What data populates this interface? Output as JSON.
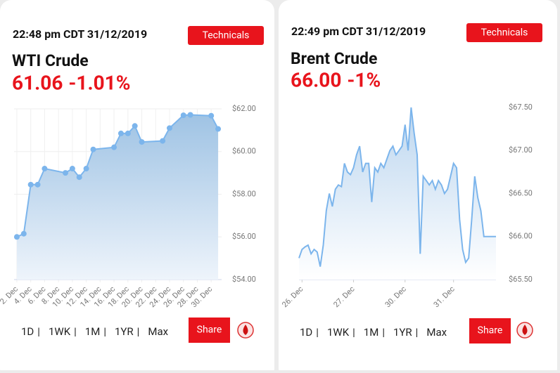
{
  "cards": [
    {
      "timestamp": "22:48 pm CDT 31/12/2019",
      "button": "Technicals",
      "name": "WTI Crude",
      "price": "61.06",
      "change": "-1.01%",
      "periods": [
        "1D",
        "1WK",
        "1M",
        "1YR",
        "Max"
      ],
      "separator": "|",
      "active": 2,
      "share": "Share"
    },
    {
      "timestamp": "22:49 pm CDT 31/12/2019",
      "button": "Technicals",
      "name": "Brent Crude",
      "price": "66.00",
      "change": "-1%",
      "periods": [
        "1D",
        "1WK",
        "1M",
        "1YR",
        "Max"
      ],
      "separator": "|",
      "active": 1,
      "share": "Share"
    }
  ],
  "chart_data": [
    {
      "type": "area",
      "markers": true,
      "grid": true,
      "color": "#7cb5ec",
      "x": [
        2,
        3,
        4,
        5,
        6,
        9,
        10,
        11,
        12,
        13,
        16,
        17,
        18,
        19,
        20,
        23,
        24,
        26,
        27,
        30,
        31
      ],
      "values": [
        56.0,
        56.15,
        58.45,
        58.45,
        59.2,
        59.0,
        59.2,
        58.8,
        59.2,
        60.1,
        60.2,
        60.85,
        60.85,
        61.2,
        60.45,
        60.5,
        61.1,
        61.7,
        61.72,
        61.68,
        61.06
      ],
      "xlim": [
        1.6,
        31.5
      ],
      "xticks": [
        {
          "value": 2,
          "label": "2. Dec"
        },
        {
          "value": 4,
          "label": "4. Dec"
        },
        {
          "value": 6,
          "label": "6. Dec"
        },
        {
          "value": 8,
          "label": "8. Dec"
        },
        {
          "value": 10,
          "label": "10. Dec"
        },
        {
          "value": 12,
          "label": "12. Dec"
        },
        {
          "value": 14,
          "label": "14. Dec"
        },
        {
          "value": 16,
          "label": "16. Dec"
        },
        {
          "value": 18,
          "label": "18. Dec"
        },
        {
          "value": 20,
          "label": "20. Dec"
        },
        {
          "value": 22,
          "label": "22. Dec"
        },
        {
          "value": 24,
          "label": "24. Dec"
        },
        {
          "value": 26,
          "label": "26. Dec"
        },
        {
          "value": 28,
          "label": "28. Dec"
        },
        {
          "value": 30,
          "label": "30. Dec"
        }
      ],
      "ylim": [
        54,
        62
      ],
      "yticks": [
        {
          "value": 54,
          "label": "$54.00"
        },
        {
          "value": 56,
          "label": "$56.00"
        },
        {
          "value": 58,
          "label": "$58.00"
        },
        {
          "value": 60,
          "label": "$60.00"
        },
        {
          "value": 62,
          "label": "$62.00"
        }
      ]
    },
    {
      "type": "area",
      "markers": false,
      "grid": false,
      "color": "#7cb5ec",
      "categories": [
        null,
        "26. Dec",
        null,
        null,
        null,
        null,
        null,
        null,
        null,
        null,
        null,
        null,
        null,
        null,
        null,
        null,
        null,
        null,
        "27. Dec",
        null,
        null,
        null,
        null,
        null,
        null,
        null,
        null,
        null,
        null,
        null,
        null,
        null,
        null,
        null,
        null,
        "30. Dec",
        null,
        null,
        null,
        null,
        null,
        null,
        null,
        null,
        null,
        null,
        null,
        null,
        null,
        null,
        null,
        "31. Dec",
        null,
        null,
        null,
        null,
        null,
        null,
        null,
        null,
        null,
        null,
        null,
        null,
        null,
        null
      ],
      "values": [
        65.75,
        65.85,
        65.88,
        65.9,
        65.8,
        65.85,
        65.82,
        65.65,
        65.9,
        66.3,
        66.5,
        66.35,
        66.55,
        66.6,
        66.58,
        66.85,
        66.75,
        66.72,
        66.8,
        66.95,
        67.05,
        66.75,
        66.85,
        66.85,
        66.4,
        66.8,
        66.75,
        66.85,
        66.8,
        66.9,
        67.0,
        67.05,
        66.95,
        67.0,
        67.05,
        67.3,
        67.0,
        67.5,
        67.2,
        66.95,
        65.8,
        66.7,
        66.65,
        66.6,
        66.65,
        66.55,
        66.65,
        66.6,
        66.5,
        66.55,
        66.7,
        66.85,
        66.8,
        66.2,
        65.85,
        65.7,
        65.75,
        66.2,
        66.7,
        66.45,
        66.3,
        66.0,
        66.0,
        66.0,
        66.0,
        66.0
      ],
      "ylim": [
        65.5,
        67.5
      ],
      "yticks": [
        {
          "value": 65.5,
          "label": "$65.50"
        },
        {
          "value": 66,
          "label": "$66.00"
        },
        {
          "value": 66.5,
          "label": "$66.50"
        },
        {
          "value": 67,
          "label": "$67.00"
        },
        {
          "value": 67.5,
          "label": "$67.50"
        }
      ]
    }
  ]
}
